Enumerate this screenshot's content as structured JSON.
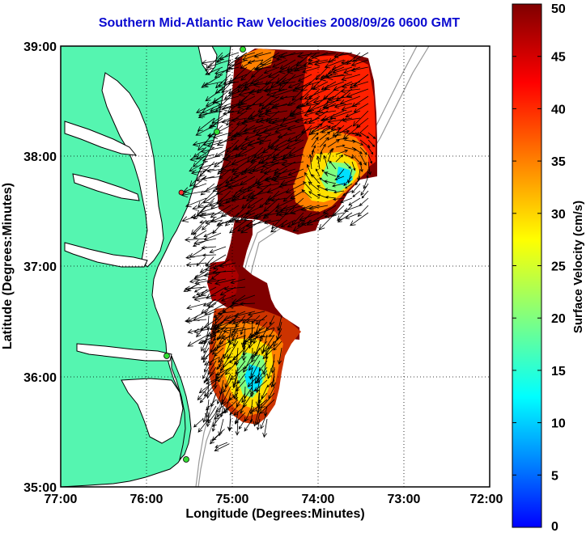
{
  "title": "Southern Mid-Atlantic Raw Velocities 2008/09/26 0600 GMT",
  "xlabel": "Longitude (Degrees:Minutes)",
  "ylabel": "Latitude (Degrees:Minutes)",
  "x_ticks": [
    "77:00",
    "76:00",
    "75:00",
    "74:00",
    "73:00",
    "72:00"
  ],
  "y_ticks": [
    "39:00",
    "38:00",
    "37:00",
    "36:00",
    "35:00"
  ],
  "lon_range": [
    -77,
    -72
  ],
  "lat_range": [
    35,
    39
  ],
  "colorbar": {
    "label": "Surface Velocity (cm/s)",
    "min": 0,
    "max": 50,
    "ticks": [
      "50",
      "45",
      "40",
      "35",
      "30",
      "25",
      "20",
      "15",
      "10",
      "5",
      "0"
    ]
  },
  "colors": {
    "land": "#55f5b0",
    "ocean": "#ffffff",
    "title": "#0a0ad0",
    "station": "#33dd33"
  },
  "grid": "dotted"
}
